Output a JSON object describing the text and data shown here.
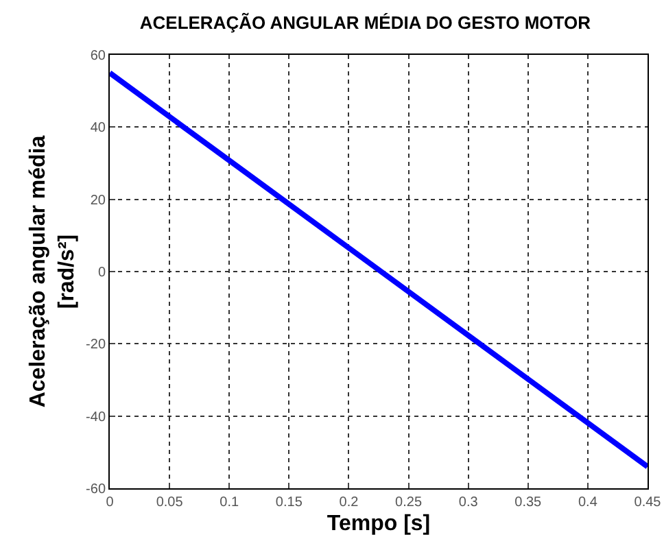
{
  "chart_data": {
    "type": "line",
    "title": "ACELERAÇÃO ANGULAR MÉDIA DO GESTO MOTOR",
    "xlabel": "Tempo [s]",
    "ylabel": "Aceleração angular média [rad/s²]",
    "x": [
      0,
      0.45
    ],
    "series": [
      {
        "color": "#0000ff",
        "values": [
          55,
          -54
        ]
      }
    ],
    "xlim": [
      0,
      0.45
    ],
    "xticks": [
      0,
      0.05,
      0.1,
      0.15,
      0.2,
      0.25,
      0.3,
      0.35,
      0.4,
      0.45
    ],
    "ylim": [
      -60,
      60
    ],
    "yticks": [
      -60,
      -40,
      -20,
      0,
      20,
      40,
      60
    ],
    "grid": true,
    "marker": "none",
    "line_style": "solid"
  }
}
